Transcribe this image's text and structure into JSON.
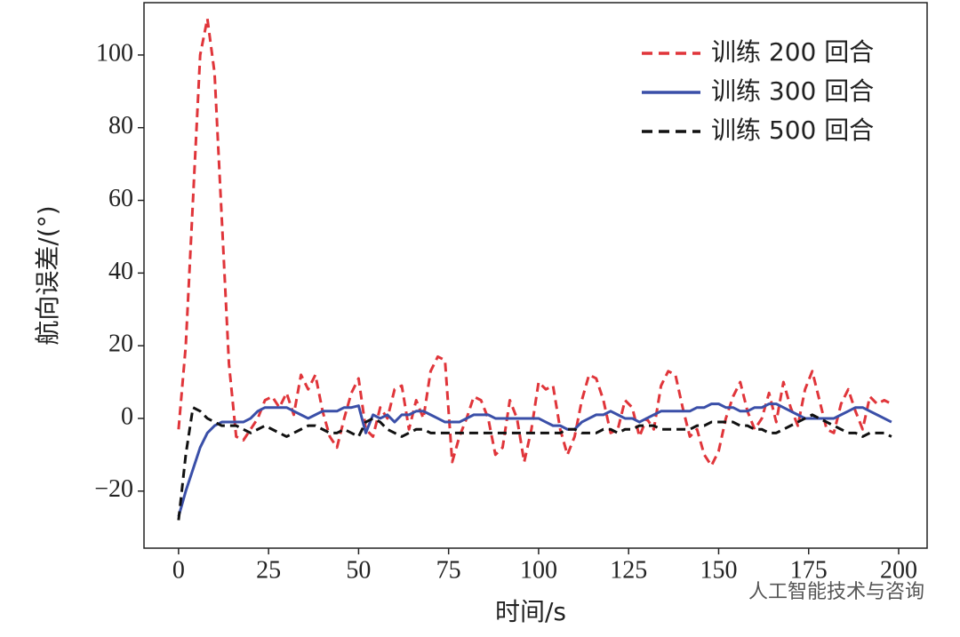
{
  "chart_data": {
    "type": "line",
    "xlabel": "时间/s",
    "ylabel": "航向误差/(°)",
    "watermark": "人工智能技术与咨询",
    "xlim": [
      -9.6,
      207.9
    ],
    "ylim": [
      -35.7,
      114.4
    ],
    "xticks": [
      0,
      25,
      50,
      75,
      100,
      125,
      150,
      175,
      200
    ],
    "yticks": [
      {
        "value": -20,
        "label": "−20"
      },
      0,
      20,
      40,
      60,
      80,
      100
    ],
    "legend": "upper right",
    "x": [
      0,
      2,
      4,
      6,
      8,
      10,
      12,
      14,
      16,
      18,
      20,
      22,
      24,
      26,
      28,
      30,
      32,
      34,
      36,
      38,
      40,
      42,
      44,
      46,
      48,
      50,
      52,
      54,
      56,
      58,
      60,
      62,
      64,
      66,
      68,
      70,
      72,
      74,
      76,
      78,
      80,
      82,
      84,
      86,
      88,
      90,
      92,
      94,
      96,
      98,
      100,
      102,
      104,
      106,
      108,
      110,
      112,
      114,
      116,
      118,
      120,
      122,
      124,
      126,
      128,
      130,
      132,
      134,
      136,
      138,
      140,
      142,
      144,
      146,
      148,
      150,
      152,
      154,
      156,
      158,
      160,
      162,
      164,
      166,
      168,
      170,
      172,
      174,
      176,
      178,
      180,
      182,
      184,
      186,
      188,
      190,
      192,
      194,
      196,
      198
    ],
    "series": [
      {
        "name": "训练 200 回合",
        "color": "#e0353a",
        "linestyle": "dashed",
        "values": [
          -3,
          20,
          60,
          100,
          110,
          95,
          55,
          15,
          -5,
          -6,
          -3,
          0,
          5,
          6,
          3,
          7,
          1,
          12,
          8,
          12,
          2,
          -5,
          -8,
          0,
          7,
          11,
          -3,
          -5,
          3,
          0,
          8,
          9,
          -3,
          5,
          0,
          13,
          17,
          16,
          -12,
          -5,
          0,
          6,
          5,
          0,
          -10,
          -8,
          5,
          0,
          -12,
          -3,
          10,
          8,
          9,
          -3,
          -10,
          -5,
          5,
          12,
          11,
          5,
          -4,
          -3,
          5,
          3,
          -5,
          0,
          -3,
          9,
          13,
          12,
          3,
          -5,
          -3,
          -10,
          -13,
          -9,
          0,
          6,
          10,
          2,
          -3,
          0,
          7,
          -1,
          10,
          3,
          -2,
          8,
          13,
          5,
          -3,
          -4,
          4,
          8,
          2,
          -3,
          6,
          4,
          5,
          4
        ]
      },
      {
        "name": "训练 300 回合",
        "color": "#3a4fa8",
        "linestyle": "solid",
        "values": [
          -27,
          -20,
          -14,
          -8,
          -4,
          -2,
          -1,
          -1,
          -1,
          -1,
          0,
          2,
          3,
          3,
          3,
          3,
          2,
          1,
          0,
          1,
          2,
          2,
          2,
          3,
          3,
          3.5,
          -4,
          1,
          0,
          1,
          -1,
          1,
          1,
          2,
          2,
          1,
          0,
          -1,
          -1,
          -1,
          0,
          1,
          1,
          1,
          0,
          0,
          0,
          0,
          0,
          0,
          0,
          -1,
          -2,
          -2,
          -3,
          -3,
          -1,
          0,
          1,
          1,
          2,
          1,
          0,
          0,
          -1,
          0,
          1,
          2,
          2,
          2,
          2,
          2,
          3,
          3,
          4,
          4,
          3,
          3,
          2,
          2,
          3,
          3,
          4,
          4,
          3,
          2,
          1,
          0,
          0,
          0,
          0,
          0,
          1,
          2,
          3,
          3,
          2,
          1,
          0,
          -1
        ]
      },
      {
        "name": "训练 500 回合",
        "color": "#111111",
        "linestyle": "dashed",
        "values": [
          -28,
          -10,
          3,
          2,
          0,
          -1,
          -2,
          -2,
          -2,
          -3,
          -4,
          -3,
          -2,
          -3,
          -4,
          -5,
          -4,
          -3,
          -2,
          -2,
          -3,
          -4,
          -4,
          -3,
          -4,
          -5,
          -1,
          0,
          -1,
          -3,
          -4,
          -5,
          -4,
          -3,
          -3,
          -4,
          -4,
          -4,
          -4,
          -4,
          -4,
          -4,
          -4,
          -4,
          -4,
          -4,
          -4,
          -4,
          -4,
          -4,
          -4,
          -4,
          -4,
          -4,
          -3,
          -3,
          -4,
          -4,
          -4,
          -3,
          -3,
          -4,
          -3,
          -3,
          -2,
          -2,
          -2,
          -3,
          -3,
          -3,
          -3,
          -3,
          -2,
          -2,
          -1,
          -1,
          -1,
          -1,
          -2,
          -2,
          -3,
          -3,
          -4,
          -4,
          -3,
          -2,
          -1,
          0,
          1,
          0,
          -1,
          -2,
          -3,
          -4,
          -4,
          -5,
          -4,
          -4,
          -4,
          -5
        ]
      }
    ]
  }
}
